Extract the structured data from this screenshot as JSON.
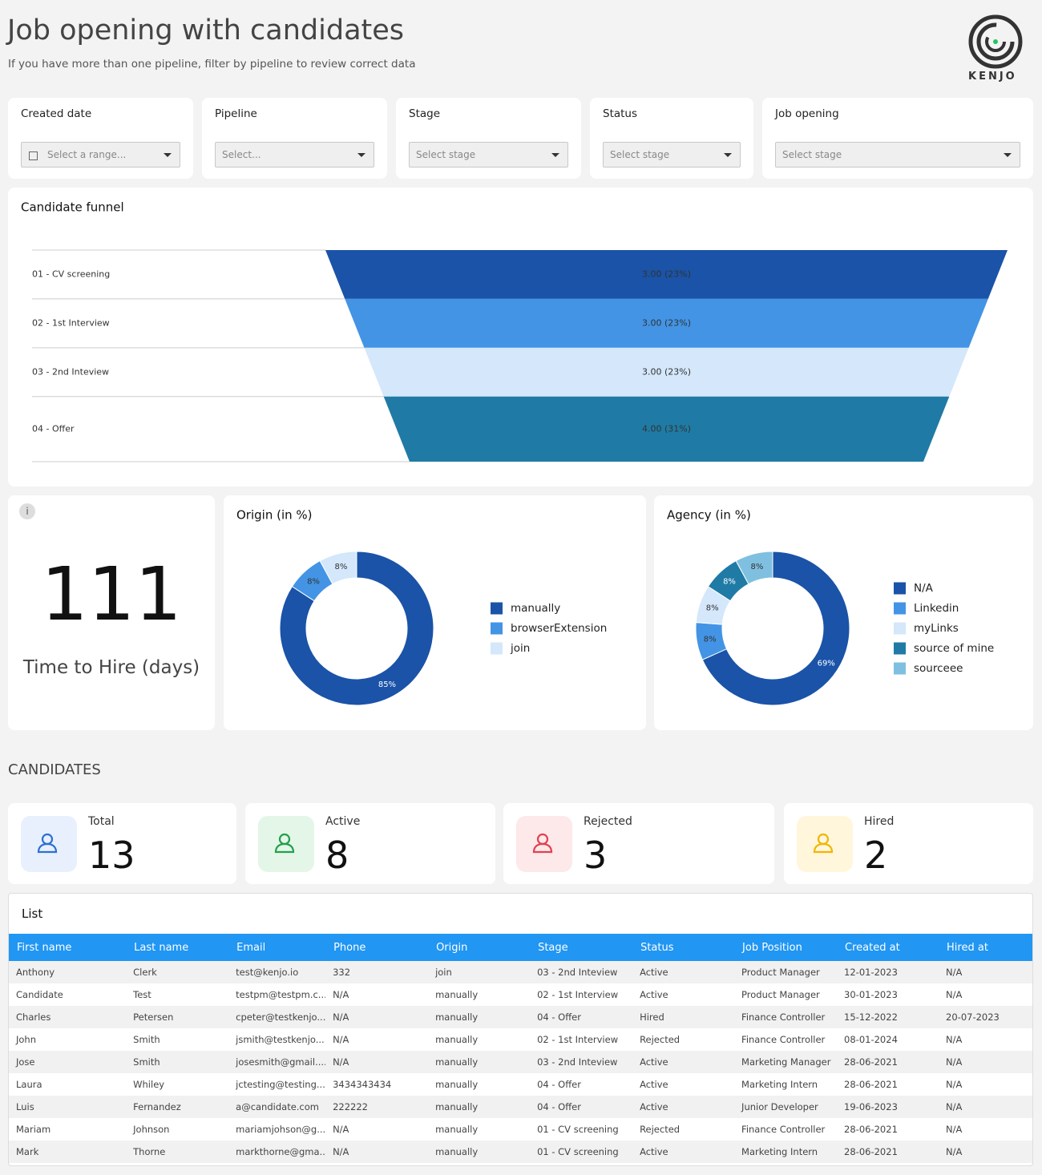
{
  "header": {
    "title": "Job opening with candidates",
    "subtitle": "If you have more than one pipeline, filter by pipeline to review correct data",
    "logo": "KENJO"
  },
  "filters": [
    {
      "label": "Created date",
      "placeholder": "Select a range..."
    },
    {
      "label": "Pipeline",
      "placeholder": "Select..."
    },
    {
      "label": "Stage",
      "placeholder": "Select stage"
    },
    {
      "label": "Status",
      "placeholder": "Select stage"
    },
    {
      "label": "Job opening",
      "placeholder": "Select stage"
    }
  ],
  "funnel": {
    "type": "funnel",
    "title": "Candidate funnel",
    "categories": [
      "01 - CV screening",
      "02 - 1st Interview",
      "03 - 2nd Inteview",
      "04 - Offer"
    ],
    "values": [
      3,
      3,
      3,
      4
    ],
    "value_labels": [
      "3.00 (23%)",
      "3.00 (23%)",
      "3.00 (23%)",
      "4.00 (31%)"
    ],
    "colors": [
      "#1a53a8",
      "#4394e5",
      "#d4e7fb",
      "#1f7ba5"
    ]
  },
  "time_to_hire": {
    "value": 111,
    "label": "Time to Hire (days)"
  },
  "origin": {
    "type": "donut",
    "title": "Origin (in %)",
    "categories": [
      "manually",
      "browserExtension",
      "join"
    ],
    "values": [
      85,
      8,
      8
    ],
    "value_labels": [
      "85%",
      "8%",
      "8%"
    ],
    "colors": [
      "#1a53a8",
      "#4394e5",
      "#d4e7fb"
    ]
  },
  "agency": {
    "type": "donut",
    "title": "Agency (in %)",
    "categories": [
      "N/A",
      "Linkedin",
      "myLinks",
      "source of mine",
      "sourceee"
    ],
    "values": [
      69,
      8,
      8,
      8,
      8
    ],
    "value_labels": [
      "69%",
      "8%",
      "8%",
      "8%",
      "8%"
    ],
    "colors": [
      "#1a53a8",
      "#4394e5",
      "#d4e7fb",
      "#1f7ba5",
      "#7fc0e0"
    ]
  },
  "candidates": {
    "title": "CANDIDATES",
    "kpis": [
      {
        "label": "Total",
        "value": 13
      },
      {
        "label": "Active",
        "value": 8
      },
      {
        "label": "Rejected",
        "value": 3
      },
      {
        "label": "Hired",
        "value": 2
      }
    ]
  },
  "table": {
    "title": "List",
    "columns": [
      "First name",
      "Last name",
      "Email",
      "Phone",
      "Origin",
      "Stage",
      "Status",
      "Job Position",
      "Created at",
      "Hired at"
    ],
    "rows": [
      [
        "Anthony",
        "Clerk",
        "test@kenjo.io",
        "332",
        "join",
        "03 - 2nd Inteview",
        "Active",
        "Product Manager",
        "12-01-2023",
        "N/A"
      ],
      [
        "Candidate",
        "Test",
        "testpm@testpm.c...",
        "N/A",
        "manually",
        "02 - 1st Interview",
        "Active",
        "Product Manager",
        "30-01-2023",
        "N/A"
      ],
      [
        "Charles",
        "Petersen",
        "cpeter@testkenjo....",
        "N/A",
        "manually",
        "04 - Offer",
        "Hired",
        "Finance Controller",
        "15-12-2022",
        "20-07-2023"
      ],
      [
        "John",
        "Smith",
        "jsmith@testkenjo....",
        "N/A",
        "manually",
        "02 - 1st Interview",
        "Rejected",
        "Finance Controller",
        "08-01-2024",
        "N/A"
      ],
      [
        "Jose",
        "Smith",
        "josesmith@gmail....",
        "N/A",
        "manually",
        "03 - 2nd Inteview",
        "Active",
        "Marketing Manager",
        "28-06-2021",
        "N/A"
      ],
      [
        "Laura",
        "Whiley",
        "jctesting@testing....",
        "3434343434",
        "manually",
        "04 - Offer",
        "Active",
        "Marketing Intern",
        "28-06-2021",
        "N/A"
      ],
      [
        "Luis",
        "Fernandez",
        "a@candidate.com",
        "222222",
        "manually",
        "04 - Offer",
        "Active",
        "Junior Developer",
        "19-06-2023",
        "N/A"
      ],
      [
        "Mariam",
        "Johnson",
        "mariamjohson@g...",
        "N/A",
        "manually",
        "01 - CV screening",
        "Rejected",
        "Finance Controller",
        "28-06-2021",
        "N/A"
      ],
      [
        "Mark",
        "Thorne",
        "markthorne@gma...",
        "N/A",
        "manually",
        "01 - CV screening",
        "Active",
        "Marketing Intern",
        "28-06-2021",
        "N/A"
      ]
    ]
  }
}
